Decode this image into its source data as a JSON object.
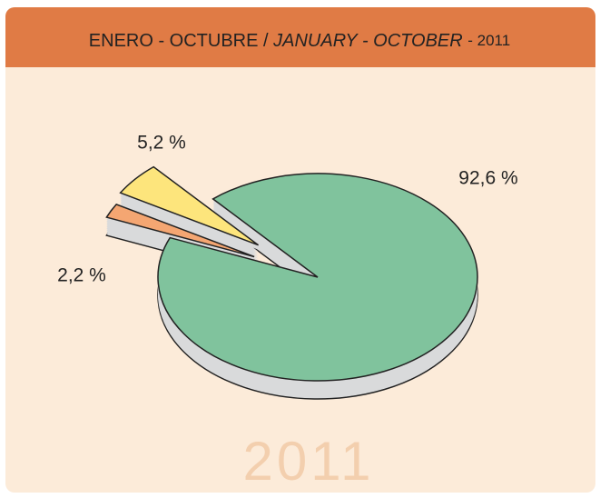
{
  "chart_data": {
    "type": "pie",
    "title_es": "ENERO - OCTUBRE /",
    "title_en": "JANUARY - OCTOBER",
    "title_year": "- 2011",
    "watermark": "2011",
    "categories": [
      null,
      null,
      null
    ],
    "values": [
      92.6,
      5.2,
      2.2
    ],
    "value_labels": [
      "92,6 %",
      "5,2 %",
      "2,2 %"
    ],
    "colors": [
      "#80c39d",
      "#fde57c",
      "#f4a672"
    ]
  }
}
